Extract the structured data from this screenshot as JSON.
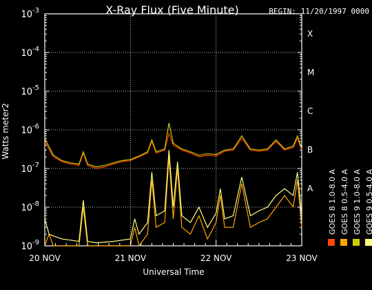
{
  "chart_data": {
    "type": "line",
    "title": "X-Ray Flux (Five Minute)",
    "begin_label": "BEGIN: 11/20/1997 0000",
    "xlabel": "Universal Time",
    "ylabel": "Watts meter2",
    "y_scale": "log",
    "ylim_exp": [
      -9,
      -3
    ],
    "xlim_days": [
      0,
      3
    ],
    "grid": true,
    "x_ticks": [
      {
        "label": "20 NOV",
        "day": 0
      },
      {
        "label": "21 NOV",
        "day": 1
      },
      {
        "label": "22 NOV",
        "day": 2
      },
      {
        "label": "23 NOV",
        "day": 3
      }
    ],
    "y_ticks": [
      {
        "exp": -9,
        "label": "-9"
      },
      {
        "exp": -8,
        "label": "-8"
      },
      {
        "exp": -7,
        "label": "-7"
      },
      {
        "exp": -6,
        "label": "-6"
      },
      {
        "exp": -5,
        "label": "-5"
      },
      {
        "exp": -4,
        "label": "-4"
      },
      {
        "exp": -3,
        "label": "-3"
      }
    ],
    "flare_classes": [
      {
        "label": "A",
        "exp": -7.5
      },
      {
        "label": "B",
        "exp": -6.5
      },
      {
        "label": "C",
        "exp": -5.5
      },
      {
        "label": "M",
        "exp": -4.5
      },
      {
        "label": "X",
        "exp": -3.5
      }
    ],
    "series": [
      {
        "name": "GOES 8 1.0-8.0 A",
        "color": "#ff4500",
        "x": [
          0,
          0.1,
          0.2,
          0.3,
          0.4,
          0.45,
          0.5,
          0.6,
          0.7,
          0.8,
          0.9,
          1.0,
          1.05,
          1.1,
          1.2,
          1.25,
          1.3,
          1.4,
          1.45,
          1.5,
          1.6,
          1.7,
          1.8,
          1.9,
          2.0,
          2.1,
          2.2,
          2.3,
          2.4,
          2.5,
          2.6,
          2.7,
          2.8,
          2.9,
          2.95,
          3.0
        ],
        "y": [
          5e-07,
          2e-07,
          1.5e-07,
          1.3e-07,
          1.2e-07,
          2.5e-07,
          1.2e-07,
          1e-07,
          1.1e-07,
          1.3e-07,
          1.5e-07,
          1.6e-07,
          1.8e-07,
          2e-07,
          2.5e-07,
          5e-07,
          2.5e-07,
          3e-07,
          8e-07,
          4e-07,
          3e-07,
          2.5e-07,
          2e-07,
          2.2e-07,
          2.1e-07,
          2.8e-07,
          3e-07,
          6e-07,
          3e-07,
          2.8e-07,
          3e-07,
          5e-07,
          3e-07,
          3.5e-07,
          6e-07,
          3e-07
        ]
      },
      {
        "name": "GOES 8 0.5-4.0 A",
        "color": "#ffa500",
        "x": [
          0,
          0.05,
          0.1,
          0.2,
          0.4,
          0.45,
          0.5,
          0.6,
          0.8,
          1.0,
          1.05,
          1.1,
          1.2,
          1.25,
          1.3,
          1.4,
          1.45,
          1.5,
          1.55,
          1.6,
          1.7,
          1.8,
          1.9,
          2.0,
          2.05,
          2.1,
          2.2,
          2.3,
          2.4,
          2.5,
          2.6,
          2.7,
          2.8,
          2.9,
          2.95,
          3.0
        ],
        "y": [
          1e-09,
          2e-09,
          1e-09,
          1e-09,
          1e-09,
          1e-08,
          1e-09,
          1e-09,
          1e-09,
          1e-09,
          3e-09,
          1e-09,
          2e-09,
          5e-08,
          3e-09,
          4e-09,
          2e-07,
          5e-09,
          1e-07,
          3e-09,
          2e-09,
          6e-09,
          1.5e-09,
          4e-09,
          2e-08,
          3e-09,
          3e-09,
          4e-08,
          3e-09,
          4e-09,
          5e-09,
          1e-08,
          2e-08,
          1e-08,
          5e-08,
          3e-09
        ]
      },
      {
        "name": "GOES 9 1.0-8.0 A",
        "color": "#cccc00",
        "x": [
          0,
          0.1,
          0.2,
          0.3,
          0.4,
          0.45,
          0.5,
          0.6,
          0.7,
          0.8,
          0.9,
          1.0,
          1.05,
          1.1,
          1.2,
          1.25,
          1.3,
          1.4,
          1.45,
          1.5,
          1.6,
          1.7,
          1.8,
          1.9,
          2.0,
          2.1,
          2.2,
          2.3,
          2.4,
          2.5,
          2.6,
          2.7,
          2.8,
          2.9,
          2.95,
          3.0
        ],
        "y": [
          6e-07,
          2.2e-07,
          1.6e-07,
          1.4e-07,
          1.3e-07,
          2.7e-07,
          1.3e-07,
          1.1e-07,
          1.2e-07,
          1.4e-07,
          1.6e-07,
          1.7e-07,
          1.9e-07,
          2.1e-07,
          2.7e-07,
          5.5e-07,
          2.7e-07,
          3.2e-07,
          1.5e-06,
          4.5e-07,
          3.2e-07,
          2.7e-07,
          2.2e-07,
          2.4e-07,
          2.3e-07,
          3e-07,
          3.2e-07,
          7e-07,
          3.2e-07,
          3e-07,
          3.2e-07,
          5.5e-07,
          3.2e-07,
          3.8e-07,
          7e-07,
          3.2e-07
        ]
      },
      {
        "name": "GOES 9 0.5-4.0 A",
        "color": "#ffff80",
        "x": [
          0,
          0.05,
          0.1,
          0.2,
          0.3,
          0.4,
          0.45,
          0.5,
          0.6,
          0.8,
          1.0,
          1.05,
          1.1,
          1.2,
          1.25,
          1.3,
          1.4,
          1.45,
          1.5,
          1.55,
          1.6,
          1.7,
          1.8,
          1.9,
          2.0,
          2.05,
          2.1,
          2.2,
          2.3,
          2.4,
          2.5,
          2.6,
          2.7,
          2.8,
          2.9,
          2.95,
          3.0
        ],
        "y": [
          5e-09,
          2e-09,
          1.8e-09,
          1.5e-09,
          1.4e-09,
          1.3e-09,
          1.5e-08,
          1.3e-09,
          1.2e-09,
          1.3e-09,
          1.5e-09,
          5e-09,
          2e-09,
          4e-09,
          8e-08,
          6e-09,
          8e-09,
          3e-07,
          1e-08,
          1.5e-07,
          6e-09,
          4e-09,
          1e-08,
          3e-09,
          7e-09,
          3e-08,
          5e-09,
          6e-09,
          6e-08,
          6e-09,
          8e-09,
          1e-08,
          2e-08,
          3e-08,
          2e-08,
          8e-08,
          6e-09
        ]
      }
    ]
  }
}
